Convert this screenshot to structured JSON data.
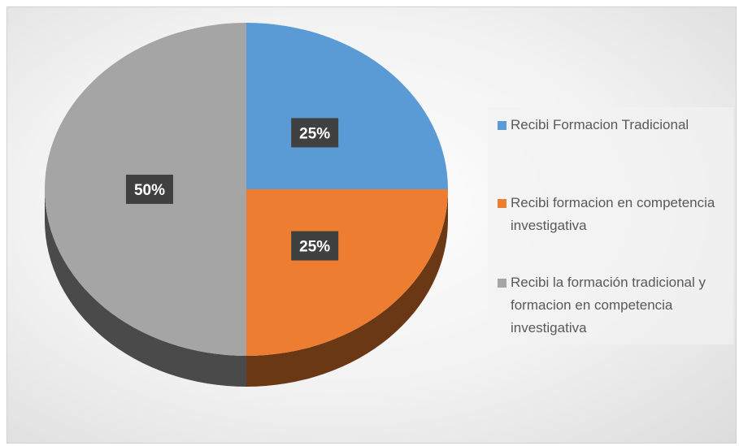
{
  "chart_data": {
    "type": "pie",
    "categories": [
      "Recibi Formacion Tradicional",
      "Recibi formacion en competencia investigativa",
      "Recibi la formación tradicional  y formacion en competencia investigativa"
    ],
    "values": [
      25,
      25,
      50
    ],
    "value_labels": [
      "25%",
      "25%",
      "50%"
    ],
    "colors": [
      "#5b9bd5",
      "#ed7d31",
      "#a5a5a5"
    ],
    "legend": "right"
  }
}
